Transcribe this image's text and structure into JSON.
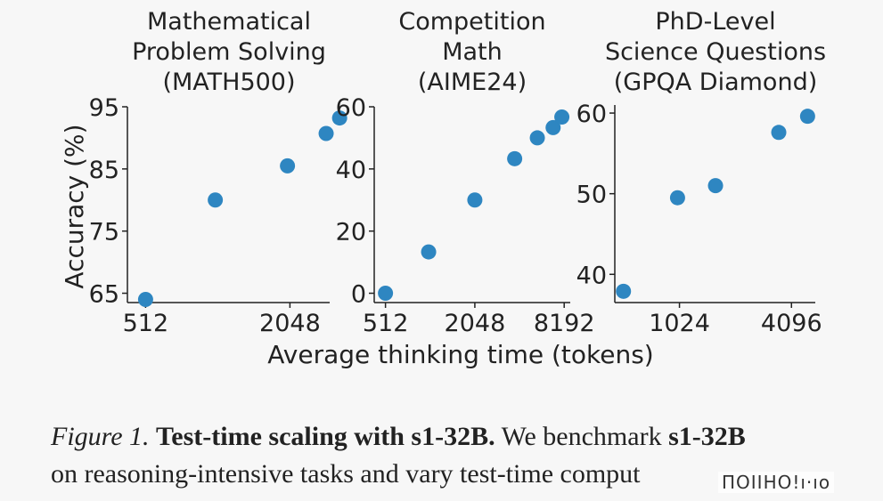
{
  "chart_data": {
    "type": "scatter",
    "xlabel": "Average thinking time (tokens)",
    "ylabel": "Accuracy (%)",
    "color": "#2e86c1",
    "panels": [
      {
        "title": [
          "Mathematical",
          "Problem Solving",
          "(MATH500)"
        ],
        "x_scale": "log2",
        "xticks": [
          512,
          2048
        ],
        "xtick_labels": [
          "512",
          "2048"
        ],
        "yticks": [
          65,
          75,
          85,
          95
        ],
        "ytick_labels": [
          "65",
          "75",
          "85",
          "95"
        ],
        "xlim": [
          430,
          3000
        ],
        "ylim": [
          63.5,
          95
        ],
        "x": [
          512,
          1000,
          2000,
          2900,
          3300
        ],
        "y": [
          64,
          80,
          85.5,
          90.7,
          93.2
        ]
      },
      {
        "title": [
          "Competition",
          "Math",
          "(AIME24)"
        ],
        "x_scale": "log2",
        "xticks": [
          512,
          2048,
          8192
        ],
        "xtick_labels": [
          "512",
          "2048",
          "8192"
        ],
        "yticks": [
          0,
          20,
          40,
          60
        ],
        "ytick_labels": [
          "0",
          "20",
          "40",
          "60"
        ],
        "xlim": [
          430,
          9000
        ],
        "ylim": [
          -3,
          60
        ],
        "x": [
          512,
          1000,
          2048,
          3800,
          5400,
          6900,
          7900
        ],
        "y": [
          0,
          13.3,
          30,
          43.3,
          50,
          53.3,
          56.7
        ]
      },
      {
        "title": [
          "PhD-Level",
          "Science Questions",
          "(GPQA Diamond)"
        ],
        "x_scale": "log2",
        "xticks": [
          1024,
          4096
        ],
        "xtick_labels": [
          "1024",
          "4096"
        ],
        "yticks": [
          40,
          50,
          60
        ],
        "ytick_labels": [
          "40",
          "50",
          "60"
        ],
        "xlim": [
          460,
          5500
        ],
        "ylim": [
          36.5,
          61
        ],
        "x": [
          512,
          1000,
          1600,
          3500,
          5000
        ],
        "y": [
          37.9,
          49.5,
          51,
          57.6,
          59.6
        ]
      }
    ]
  },
  "caption": {
    "fig_label": "Figure 1.",
    "bold_lead": "Test-time scaling with s1-32B.",
    "text_a": " We benchmark ",
    "bold_model": "s1-32B",
    "line2": "on reasoning-intensive tasks and vary test-time comput"
  },
  "watermark": "ΠOIIHO!ı·ıo"
}
